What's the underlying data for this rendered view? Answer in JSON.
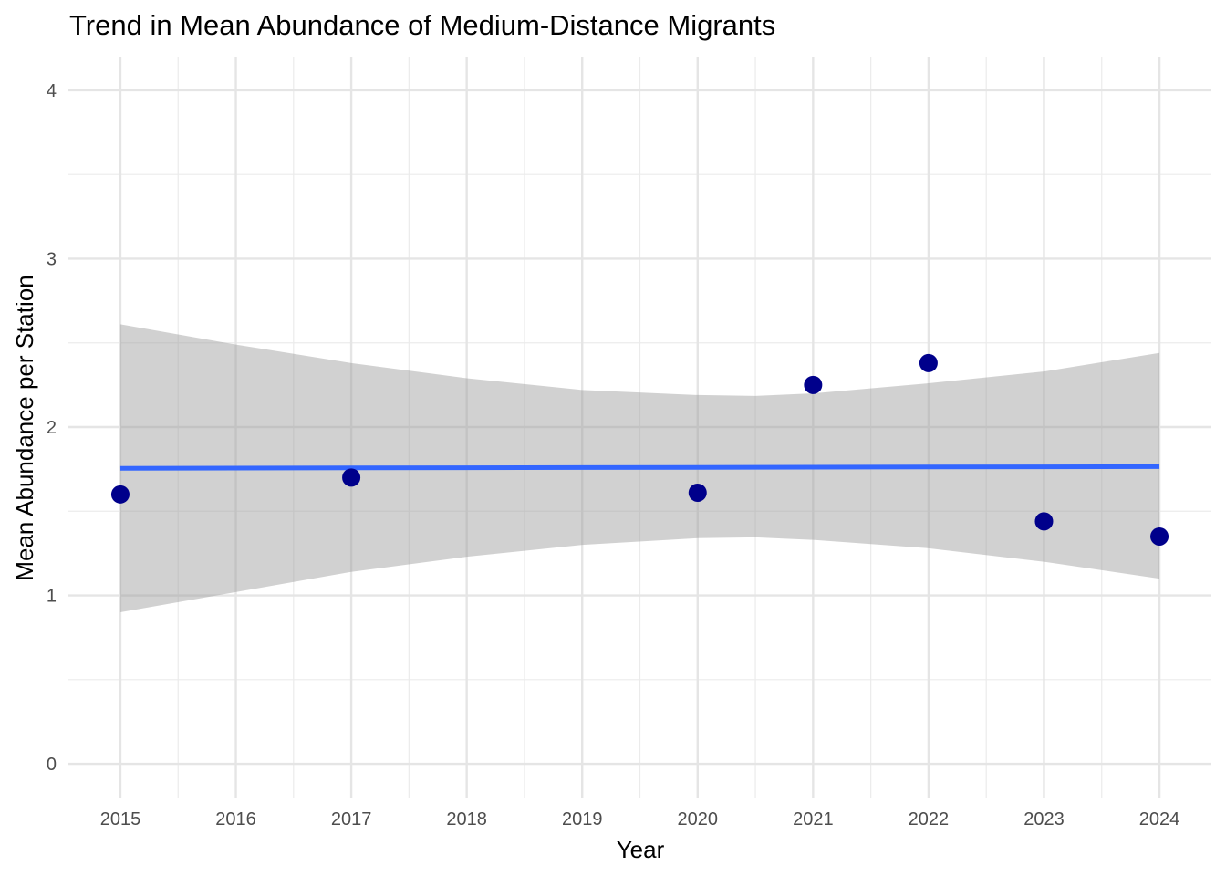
{
  "chart_data": {
    "type": "scatter",
    "title": "Trend in Mean Abundance of Medium-Distance Migrants",
    "xlabel": "Year",
    "ylabel": "Mean Abundance per Station",
    "xlim": [
      2014.55,
      2024.45
    ],
    "ylim": [
      -0.2,
      4.2
    ],
    "x_ticks": [
      "2015",
      "2016",
      "2017",
      "2018",
      "2019",
      "2020",
      "2021",
      "2022",
      "2023",
      "2024"
    ],
    "y_ticks": [
      "0",
      "1",
      "2",
      "3",
      "4"
    ],
    "grid": true,
    "legend": "none",
    "points": {
      "color": "#00008b",
      "x": [
        2015,
        2017,
        2020,
        2021,
        2022,
        2023,
        2024
      ],
      "y": [
        1.6,
        1.7,
        1.61,
        2.25,
        2.38,
        1.44,
        1.35
      ]
    },
    "trend_line": {
      "color": "#3366ff",
      "x": [
        2015,
        2024
      ],
      "y": [
        1.755,
        1.765
      ]
    },
    "confidence_band": {
      "color": "#999999",
      "x": [
        2015,
        2016,
        2017,
        2018,
        2019,
        2020,
        2020.5,
        2021,
        2022,
        2023,
        2024
      ],
      "lower": [
        0.9,
        1.02,
        1.14,
        1.23,
        1.3,
        1.34,
        1.345,
        1.33,
        1.28,
        1.2,
        1.1
      ],
      "upper": [
        2.61,
        2.49,
        2.38,
        2.29,
        2.22,
        2.19,
        2.185,
        2.2,
        2.26,
        2.33,
        2.44
      ]
    }
  }
}
